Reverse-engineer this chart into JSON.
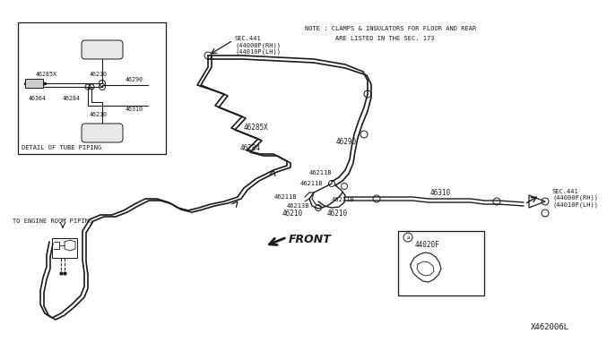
{
  "bg_color": "#ffffff",
  "line_color": "#1a1a1a",
  "diagram_number": "X462006L",
  "note_text": "NOTE : CLAMPS & INSULATORS FOR FLOOR AND REAR\n        ARE LISTED IN THE SEC. 173",
  "sec441_top": "SEC.441\n(44000P(RH))\n(44010P(LH))",
  "sec441_right": "SEC.441\n(44000P(RH))\n(44010P(LH))",
  "front_label": "FRONT",
  "to_engine_label": "TO ENGINE ROOM PIPING",
  "detail_label": "DETAIL OF TUBE PIPING"
}
